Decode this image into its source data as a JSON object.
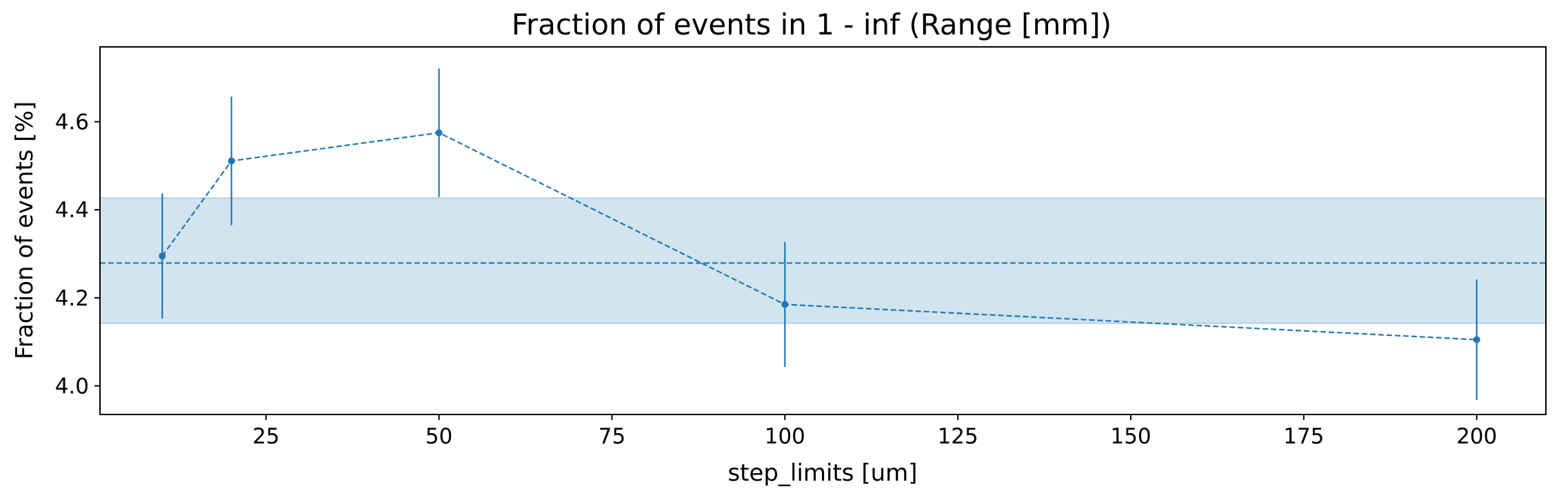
{
  "chart_data": {
    "type": "line",
    "title": "Fraction of events in 1 - inf (Range [mm])",
    "xlabel": "step_limits [um]",
    "ylabel": "Fraction of events [%]",
    "xlim": [
      1,
      210
    ],
    "ylim": [
      3.935,
      4.77
    ],
    "x_ticks": [
      25,
      50,
      75,
      100,
      125,
      150,
      175,
      200
    ],
    "y_ticks": [
      4.0,
      4.2,
      4.4,
      4.6
    ],
    "x_tick_labels": [
      "25",
      "50",
      "75",
      "100",
      "125",
      "150",
      "175",
      "200"
    ],
    "y_tick_labels": [
      "4.0",
      "4.2",
      "4.4",
      "4.6"
    ],
    "grid": false,
    "series": [
      {
        "x": [
          10,
          20,
          50,
          100,
          200
        ],
        "values": [
          4.295,
          4.511,
          4.575,
          4.185,
          4.105
        ],
        "errors": [
          0.142,
          0.146,
          0.146,
          0.142,
          0.137
        ],
        "color": "#1f77b4",
        "line_style": "dashed",
        "marker": "circle"
      }
    ],
    "reference": {
      "mean": 4.279,
      "band": [
        4.142,
        4.427
      ],
      "color": "#1f77b4",
      "line_style": "dashed"
    }
  }
}
